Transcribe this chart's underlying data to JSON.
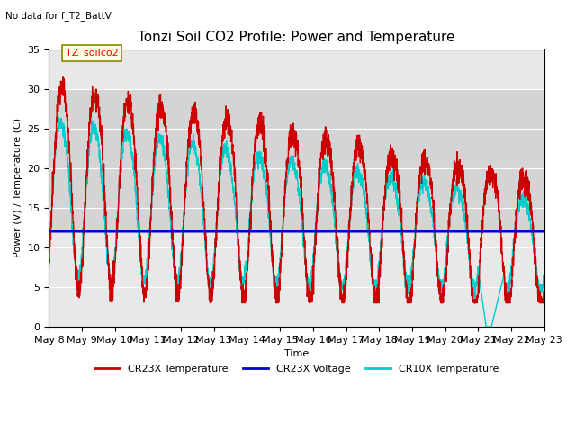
{
  "title": "Tonzi Soil CO2 Profile: Power and Temperature",
  "subtitle": "No data for f_T2_BattV",
  "xlabel": "Time",
  "ylabel": "Power (V) / Temperature (C)",
  "ylim": [
    0,
    35
  ],
  "yticks": [
    0,
    5,
    10,
    15,
    20,
    25,
    30,
    35
  ],
  "xtick_labels": [
    "May 8",
    "May 9",
    "May 10",
    "May 11",
    "May 12",
    "May 13",
    "May 14",
    "May 15",
    "May 16",
    "May 17",
    "May 18",
    "May 19",
    "May 20",
    "May 21",
    "May 22",
    "May 23"
  ],
  "voltage_level": 12.0,
  "cr23x_color": "#cc0000",
  "cr10x_color": "#00cccc",
  "voltage_color": "#0000cc",
  "plot_bg_color": "#e8e8e8",
  "gray_band_color": "#d0d0d0",
  "legend_label_cr23x": "CR23X Temperature",
  "legend_label_voltage": "CR23X Voltage",
  "legend_label_cr10x": "CR10X Temperature",
  "annotation_box_label": "TZ_soilco2",
  "title_fontsize": 11,
  "axis_fontsize": 8,
  "tick_fontsize": 8,
  "n_days": 15
}
